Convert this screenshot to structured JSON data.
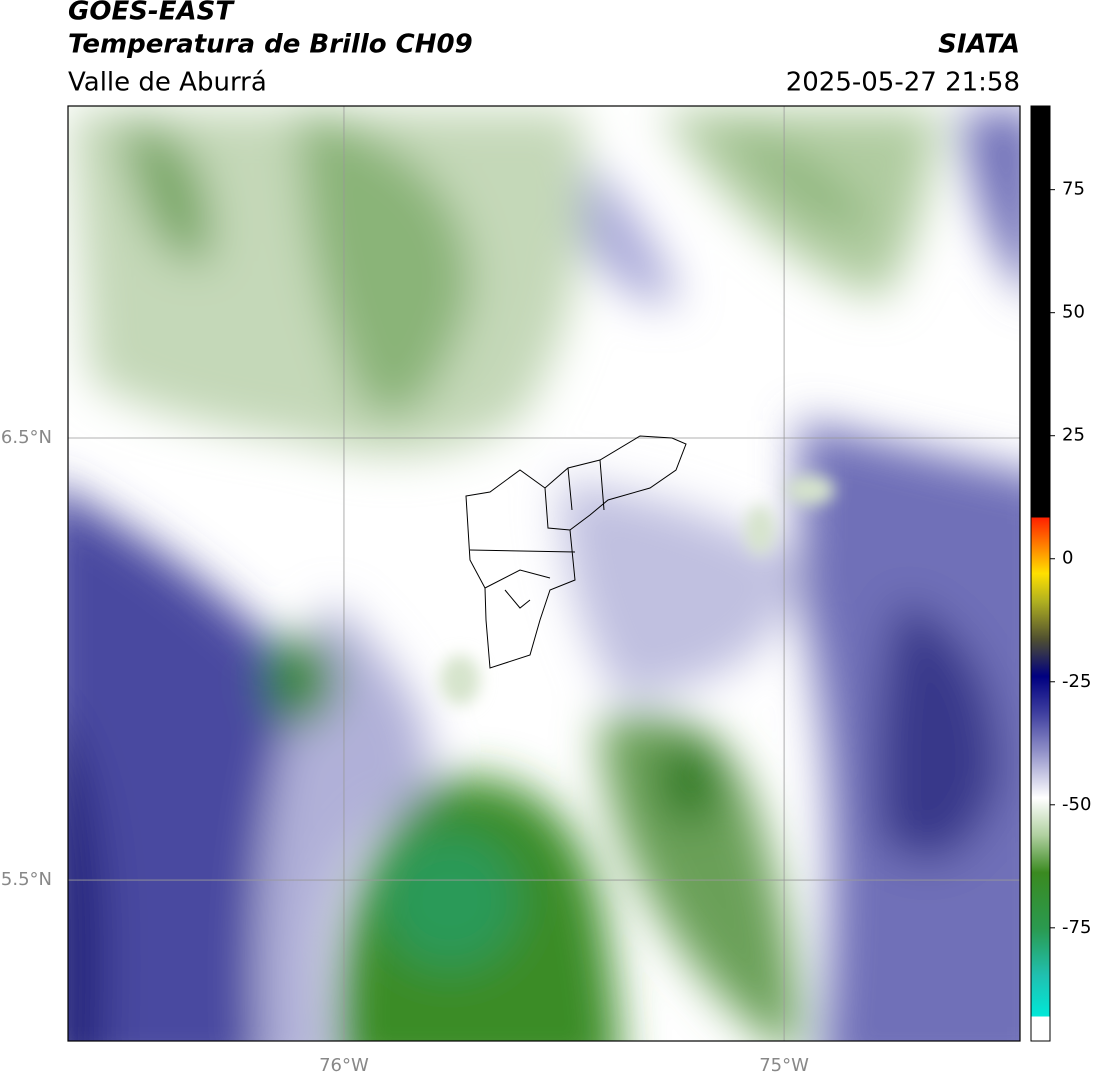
{
  "header": {
    "title": "GOES-EAST",
    "subtitle": "Temperatura de Brillo CH09",
    "region": "Valle de Aburrá",
    "source": "SIATA",
    "datetime": "2025-05-27 21:58"
  },
  "map": {
    "xlim": [
      -76.627,
      -74.464
    ],
    "ylim": [
      5.136,
      7.251
    ],
    "xticks": [
      {
        "value": -76,
        "label": "76°W"
      },
      {
        "value": -75,
        "label": "75°W"
      }
    ],
    "yticks": [
      {
        "value": 6.5,
        "label": "6.5°N"
      },
      {
        "value": 5.5,
        "label": "5.5°N"
      }
    ]
  },
  "colorbar": {
    "lim": [
      -98,
      92
    ],
    "ticks": [
      75,
      50,
      25,
      0,
      -25,
      -50,
      -75
    ]
  }
}
